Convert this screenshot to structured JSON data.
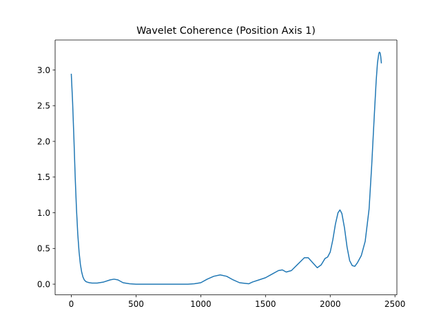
{
  "chart_data": {
    "type": "line",
    "title": "Wavelet Coherence (Position Axis 1)",
    "xlabel": "",
    "ylabel": "",
    "xlim": [
      -125,
      2515
    ],
    "ylim": [
      -0.15,
      3.42
    ],
    "xticks": [
      0,
      500,
      1000,
      1500,
      2000,
      2500
    ],
    "xtick_labels": [
      "0",
      "500",
      "1000",
      "1500",
      "2000",
      "2500"
    ],
    "yticks": [
      0.0,
      0.5,
      1.0,
      1.5,
      2.0,
      2.5,
      3.0
    ],
    "ytick_labels": [
      "0.0",
      "0.5",
      "1.0",
      "1.5",
      "2.0",
      "2.5",
      "3.0"
    ],
    "grid": false,
    "legend": "none",
    "series": [
      {
        "color": "#1f77b4",
        "x": [
          0,
          10,
          20,
          30,
          40,
          50,
          60,
          70,
          80,
          90,
          100,
          110,
          120,
          140,
          160,
          200,
          250,
          300,
          330,
          360,
          400,
          450,
          500,
          600,
          700,
          800,
          900,
          950,
          1000,
          1050,
          1100,
          1150,
          1200,
          1250,
          1300,
          1370,
          1400,
          1450,
          1500,
          1550,
          1600,
          1630,
          1660,
          1700,
          1750,
          1800,
          1830,
          1860,
          1900,
          1930,
          1960,
          1980,
          2000,
          2020,
          2040,
          2060,
          2075,
          2090,
          2110,
          2130,
          2150,
          2170,
          2190,
          2210,
          2240,
          2270,
          2300,
          2320,
          2340,
          2355,
          2365,
          2375,
          2380,
          2385,
          2390,
          2395
        ],
        "y": [
          2.94,
          2.55,
          2.05,
          1.5,
          1.05,
          0.7,
          0.45,
          0.28,
          0.17,
          0.1,
          0.06,
          0.04,
          0.03,
          0.02,
          0.015,
          0.015,
          0.03,
          0.06,
          0.07,
          0.06,
          0.02,
          0.005,
          0.0,
          0.0,
          0.0,
          0.0,
          0.0,
          0.005,
          0.02,
          0.07,
          0.11,
          0.13,
          0.11,
          0.06,
          0.02,
          0.005,
          0.03,
          0.06,
          0.09,
          0.14,
          0.19,
          0.2,
          0.17,
          0.19,
          0.28,
          0.37,
          0.37,
          0.31,
          0.23,
          0.27,
          0.36,
          0.38,
          0.45,
          0.62,
          0.84,
          1.0,
          1.04,
          0.99,
          0.79,
          0.52,
          0.33,
          0.26,
          0.25,
          0.3,
          0.4,
          0.6,
          1.05,
          1.65,
          2.35,
          2.85,
          3.1,
          3.23,
          3.25,
          3.24,
          3.19,
          3.1
        ]
      }
    ]
  }
}
